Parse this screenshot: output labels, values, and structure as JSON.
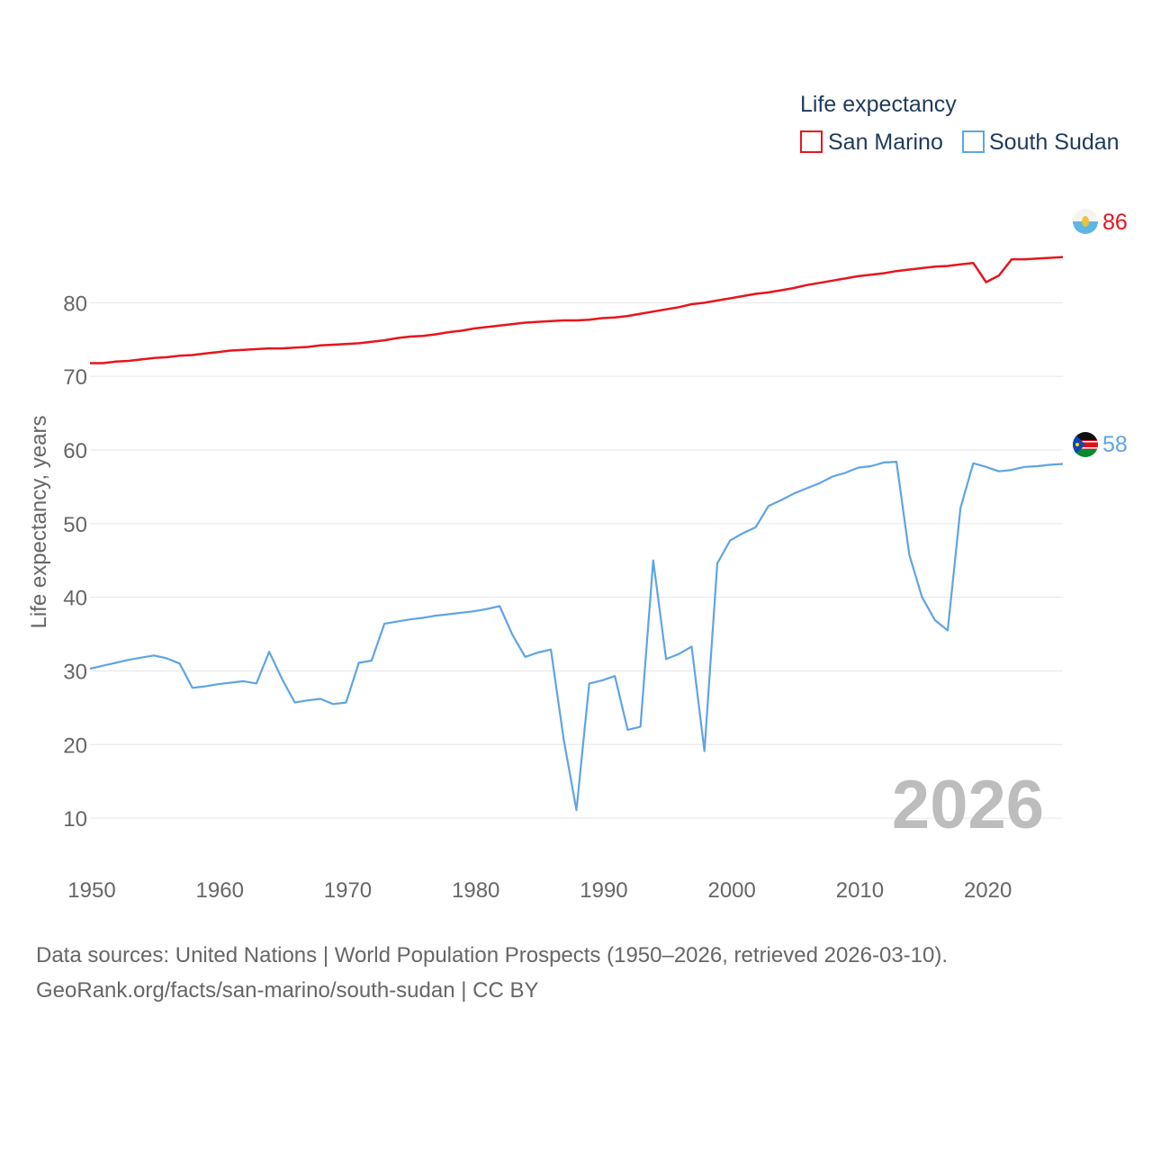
{
  "chart_data": {
    "type": "line",
    "year_label": "2026",
    "ylabel": "Life expectancy, years",
    "xlabel": "",
    "xlim": [
      1950,
      2026
    ],
    "ylim": [
      5,
      93
    ],
    "x_ticks": [
      1950,
      1960,
      1970,
      1980,
      1990,
      2000,
      2010,
      2020
    ],
    "y_ticks": [
      10,
      20,
      30,
      40,
      50,
      60,
      70,
      80
    ],
    "legend": {
      "title": "Life expectancy",
      "position": "top-right"
    },
    "series": [
      {
        "name": "San Marino",
        "color": "#e8141c",
        "end_label": "86",
        "flag_icon": "san-marino-flag-icon",
        "x": [
          1950,
          1951,
          1952,
          1953,
          1954,
          1955,
          1956,
          1957,
          1958,
          1959,
          1960,
          1961,
          1962,
          1963,
          1964,
          1965,
          1966,
          1967,
          1968,
          1969,
          1970,
          1971,
          1972,
          1973,
          1974,
          1975,
          1976,
          1977,
          1978,
          1979,
          1980,
          1981,
          1982,
          1983,
          1984,
          1985,
          1986,
          1987,
          1988,
          1989,
          1990,
          1991,
          1992,
          1993,
          1994,
          1995,
          1996,
          1997,
          1998,
          1999,
          2000,
          2001,
          2002,
          2003,
          2004,
          2005,
          2006,
          2007,
          2008,
          2009,
          2010,
          2011,
          2012,
          2013,
          2014,
          2015,
          2016,
          2017,
          2018,
          2019,
          2020,
          2021,
          2022,
          2023,
          2024,
          2025,
          2026
        ],
        "y": [
          71.8,
          71.8,
          72.0,
          72.1,
          72.3,
          72.5,
          72.6,
          72.8,
          72.9,
          73.1,
          73.3,
          73.5,
          73.6,
          73.7,
          73.8,
          73.8,
          73.9,
          74.0,
          74.2,
          74.3,
          74.4,
          74.5,
          74.7,
          74.9,
          75.2,
          75.4,
          75.5,
          75.7,
          76.0,
          76.2,
          76.5,
          76.7,
          76.9,
          77.1,
          77.3,
          77.4,
          77.5,
          77.6,
          77.6,
          77.7,
          77.9,
          78.0,
          78.2,
          78.5,
          78.8,
          79.1,
          79.4,
          79.8,
          80.0,
          80.3,
          80.6,
          80.9,
          81.2,
          81.4,
          81.7,
          82.0,
          82.4,
          82.7,
          83.0,
          83.3,
          83.6,
          83.8,
          84.0,
          84.3,
          84.5,
          84.7,
          84.9,
          85.0,
          85.2,
          85.4,
          82.8,
          83.7,
          85.9,
          85.9,
          86.0,
          86.1,
          86.2
        ]
      },
      {
        "name": "South Sudan",
        "color": "#5fa4e4",
        "end_label": "58",
        "flag_icon": "south-sudan-flag-icon",
        "x": [
          1950,
          1951,
          1952,
          1953,
          1954,
          1955,
          1956,
          1957,
          1958,
          1959,
          1960,
          1961,
          1962,
          1963,
          1964,
          1965,
          1966,
          1967,
          1968,
          1969,
          1970,
          1971,
          1972,
          1973,
          1974,
          1975,
          1976,
          1977,
          1978,
          1979,
          1980,
          1981,
          1982,
          1983,
          1984,
          1985,
          1986,
          1987,
          1988,
          1989,
          1990,
          1991,
          1992,
          1993,
          1994,
          1995,
          1996,
          1997,
          1998,
          1999,
          2000,
          2001,
          2002,
          2003,
          2004,
          2005,
          2006,
          2007,
          2008,
          2009,
          2010,
          2011,
          2012,
          2013,
          2014,
          2015,
          2016,
          2017,
          2018,
          2019,
          2020,
          2021,
          2022,
          2023,
          2024,
          2025,
          2026
        ],
        "y": [
          30.3,
          30.7,
          31.1,
          31.5,
          31.8,
          32.1,
          31.7,
          31.0,
          27.7,
          27.9,
          28.2,
          28.4,
          28.6,
          28.3,
          32.6,
          28.9,
          25.7,
          26.0,
          26.2,
          25.5,
          25.7,
          31.1,
          31.4,
          36.4,
          36.7,
          37.0,
          37.2,
          37.5,
          37.7,
          37.9,
          38.1,
          38.4,
          38.8,
          34.9,
          31.9,
          32.5,
          32.9,
          20.7,
          11.1,
          28.3,
          28.7,
          29.3,
          22.0,
          22.4,
          45.0,
          31.6,
          32.3,
          33.3,
          19.1,
          44.6,
          47.7,
          48.7,
          49.5,
          52.4,
          53.2,
          54.1,
          54.8,
          55.5,
          56.4,
          56.9,
          57.6,
          57.8,
          58.3,
          58.4,
          45.8,
          40.0,
          36.9,
          35.5,
          52.1,
          58.2,
          57.7,
          57.1,
          57.3,
          57.7,
          57.8,
          58.0,
          58.1
        ]
      }
    ]
  },
  "source": {
    "line1": "Data sources: United Nations | World Population Prospects (1950–2026, retrieved 2026-03-10).",
    "line2": "GeoRank.org/facts/san-marino/south-sudan | CC BY"
  }
}
